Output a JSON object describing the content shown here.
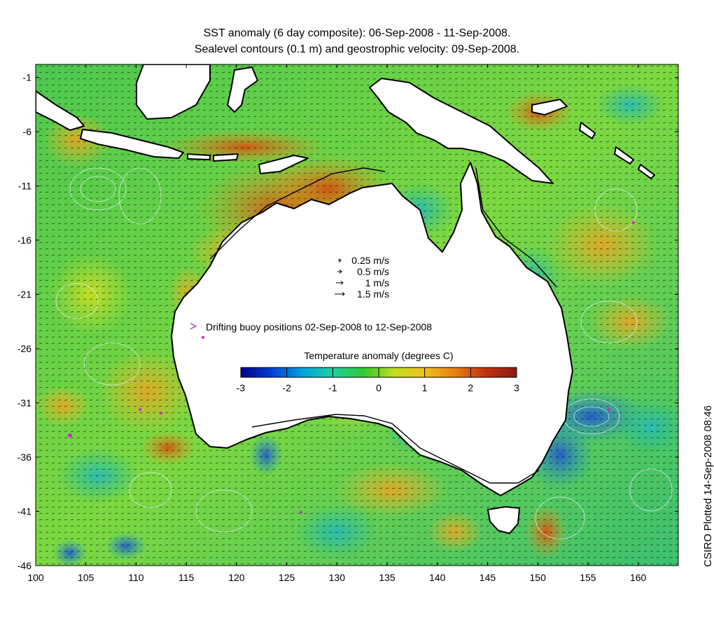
{
  "title": {
    "line1": "SST anomaly (6 day composite): 06-Sep-2008 - 11-Sep-2008.",
    "line2": "Sealevel contours (0.1 m) and geostrophic velocity: 09-Sep-2008."
  },
  "map": {
    "lon_range": [
      100,
      164
    ],
    "lat_range": [
      -46,
      0
    ],
    "x_ticks": [
      "100",
      "105",
      "110",
      "115",
      "120",
      "125",
      "130",
      "135",
      "140",
      "145",
      "150",
      "155",
      "160"
    ],
    "y_ticks": [
      "-1",
      "-6",
      "-11",
      "-16",
      "-21",
      "-26",
      "-31",
      "-36",
      "-41",
      "-46"
    ]
  },
  "velocity_legend": {
    "items": [
      {
        "speed": 0.25,
        "label": "0.25 m/s"
      },
      {
        "speed": 0.5,
        "label": "0.5 m/s"
      },
      {
        "speed": 1,
        "label": "1 m/s"
      },
      {
        "speed": 1.5,
        "label": "1.5 m/s"
      }
    ]
  },
  "buoy_legend": {
    "label": "Drifting buoy positions 02-Sep-2008 to 12-Sep-2008",
    "color": "#c030c0"
  },
  "colorbar": {
    "title": "Temperature anomaly (degrees C)",
    "range": [
      -3,
      3
    ],
    "ticks": [
      "-3",
      "-2",
      "-1",
      "0",
      "1",
      "2",
      "3"
    ],
    "colors": [
      "#00008b",
      "#0040d0",
      "#00a0e0",
      "#20d0a0",
      "#30c830",
      "#c0e020",
      "#f0c020",
      "#e88010",
      "#c03010",
      "#8b1a10"
    ]
  },
  "credit": "CSIRO Plotted 14-Sep-2008 08:46"
}
